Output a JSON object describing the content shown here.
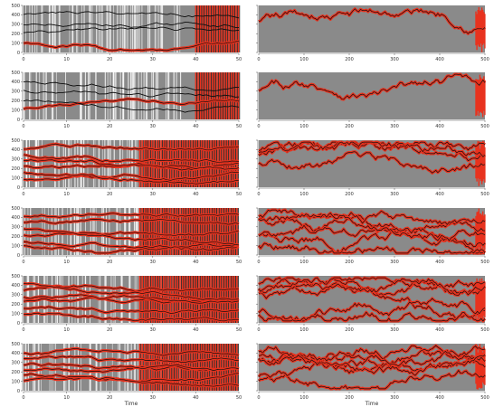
{
  "chart_data": {
    "type": "line",
    "layout": "6 rows x 2 columns of panels",
    "colors": {
      "background_band": "#8a8a8a",
      "highlight": "#e8321e",
      "trace": "#111111",
      "gap": "#ffffff"
    },
    "left_panels": {
      "xlim": [
        0,
        50
      ],
      "ylim": [
        0,
        500
      ],
      "x_ticks": [
        0,
        10,
        20,
        30,
        40,
        50
      ],
      "x_tick_labels": [
        "0",
        "10",
        "20",
        "30",
        "40",
        "50"
      ],
      "y_ticks": [
        0,
        100,
        200,
        300,
        400,
        500
      ],
      "y_tick_labels": [
        "0",
        "100",
        "200",
        "300",
        "400",
        "500"
      ],
      "xlabel": "Time",
      "xlabel_on_bottom_only": true
    },
    "right_panels": {
      "xlim": [
        0,
        500
      ],
      "ylim": [
        0,
        500
      ],
      "x_ticks": [
        0,
        100,
        200,
        300,
        400,
        500
      ],
      "x_tick_labels": [
        "0",
        "100",
        "200",
        "300",
        "400",
        "500"
      ],
      "xlabel": "Time",
      "xlabel_on_bottom_only": true
    },
    "panels": [
      {
        "row": 1,
        "col": "left",
        "lines": 4,
        "highlighted_lines": 1
      },
      {
        "row": 1,
        "col": "right",
        "lines": 1,
        "highlighted_lines": 1
      },
      {
        "row": 2,
        "col": "left",
        "lines": 4,
        "highlighted_lines": 1
      },
      {
        "row": 2,
        "col": "right",
        "lines": 1,
        "highlighted_lines": 1
      },
      {
        "row": 3,
        "col": "left",
        "lines": 6,
        "highlighted_lines": 6
      },
      {
        "row": 3,
        "col": "right",
        "lines": 4,
        "highlighted_lines": 4
      },
      {
        "row": 4,
        "col": "left",
        "lines": 6,
        "highlighted_lines": 6
      },
      {
        "row": 4,
        "col": "right",
        "lines": 6,
        "highlighted_lines": 6
      },
      {
        "row": 5,
        "col": "left",
        "lines": 6,
        "highlighted_lines": 6
      },
      {
        "row": 5,
        "col": "right",
        "lines": 6,
        "highlighted_lines": 6
      },
      {
        "row": 6,
        "col": "left",
        "lines": 6,
        "highlighted_lines": 6
      },
      {
        "row": 6,
        "col": "right",
        "lines": 6,
        "highlighted_lines": 6
      }
    ]
  }
}
